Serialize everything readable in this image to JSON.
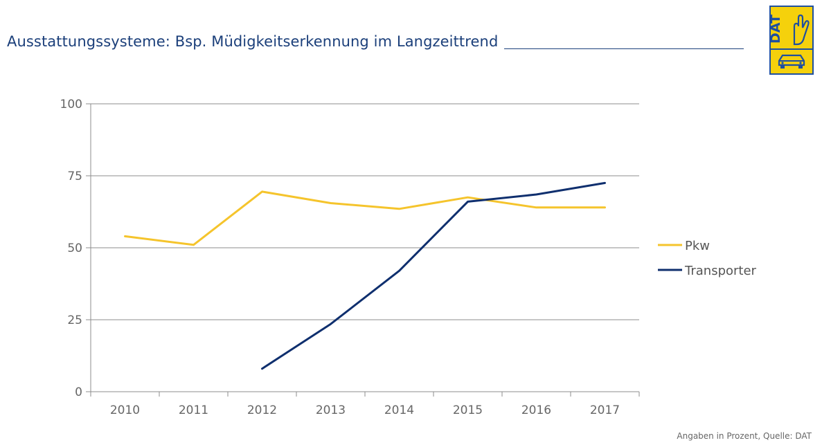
{
  "header": {
    "title": "Ausstattungssysteme: Bsp. Müdigkeitserkennung im Langzeittrend"
  },
  "logo": {
    "text": "DAT",
    "colors": {
      "yellow": "#f5d10c",
      "blue": "#1e4fa0"
    }
  },
  "footnote": "Angaben in Prozent, Quelle: DAT",
  "chart_data": {
    "type": "line",
    "categories": [
      "2010",
      "2011",
      "2012",
      "2013",
      "2014",
      "2015",
      "2016",
      "2017"
    ],
    "series": [
      {
        "name": "Pkw",
        "color": "#f5c42c",
        "values": [
          54,
          51,
          69.5,
          65.5,
          63.5,
          67.5,
          64,
          64
        ]
      },
      {
        "name": "Transporter",
        "color": "#0f2f6e",
        "values": [
          null,
          null,
          8,
          23.5,
          42,
          66,
          68.5,
          72.5
        ]
      }
    ],
    "yticks": [
      0,
      25,
      50,
      75,
      100
    ],
    "ylim": [
      0,
      100
    ],
    "grid": true,
    "legend_position": "right"
  }
}
